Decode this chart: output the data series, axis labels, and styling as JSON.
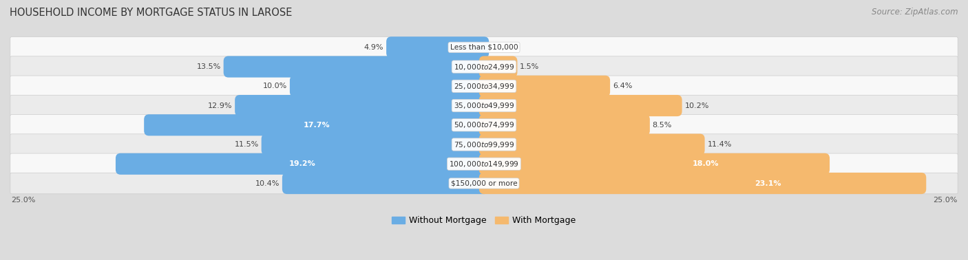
{
  "title": "HOUSEHOLD INCOME BY MORTGAGE STATUS IN LAROSE",
  "source": "Source: ZipAtlas.com",
  "categories": [
    "Less than $10,000",
    "$10,000 to $24,999",
    "$25,000 to $34,999",
    "$35,000 to $49,999",
    "$50,000 to $74,999",
    "$75,000 to $99,999",
    "$100,000 to $149,999",
    "$150,000 or more"
  ],
  "without_mortgage": [
    4.9,
    13.5,
    10.0,
    12.9,
    17.7,
    11.5,
    19.2,
    10.4
  ],
  "with_mortgage": [
    0.0,
    1.5,
    6.4,
    10.2,
    8.5,
    11.4,
    18.0,
    23.1
  ],
  "blue_color": "#6aade4",
  "orange_color": "#f5b96e",
  "row_odd_color": "#f5f5f5",
  "row_even_color": "#e8e8e8",
  "bg_color": "#dcdcdc",
  "xlim": 25.0,
  "title_fontsize": 10.5,
  "source_fontsize": 8.5,
  "label_fontsize": 8.0,
  "legend_fontsize": 9,
  "axis_label_fontsize": 8,
  "inside_threshold_blue": 16.0,
  "inside_threshold_orange": 17.0
}
